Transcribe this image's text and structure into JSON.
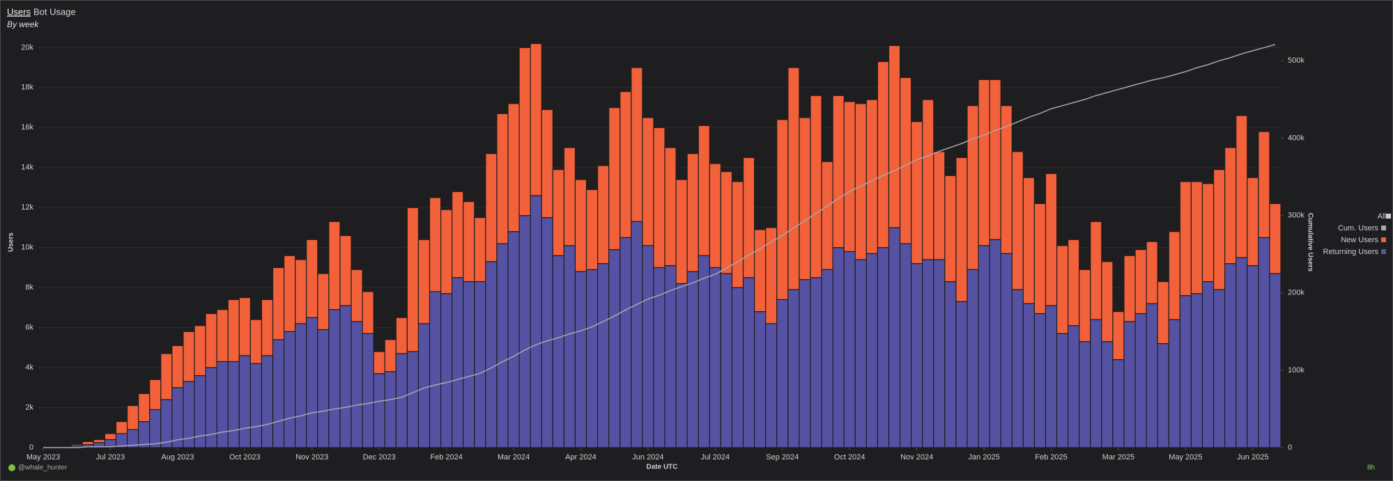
{
  "tabs": [
    "Users",
    "Bot Usage"
  ],
  "chart_data": {
    "type": "bar",
    "stacked": true,
    "subtitle": "By week",
    "x_label": "Date UTC",
    "y_label": "Users",
    "y2_label": "Cumulative Users",
    "legend_title": "All",
    "legend": "right",
    "grid": true,
    "categories": [
      null,
      null,
      null,
      null,
      null,
      null,
      null,
      null,
      null,
      null,
      null,
      null,
      null,
      null,
      null,
      null,
      null,
      null,
      null,
      null,
      null,
      null,
      null,
      null,
      null,
      null,
      null,
      null,
      null,
      null,
      null,
      null,
      null,
      null,
      null,
      null,
      null,
      null,
      null,
      null,
      null,
      null,
      null,
      null,
      null,
      null,
      null,
      null,
      null,
      null,
      null,
      null,
      null,
      null,
      null,
      null,
      null,
      null,
      null,
      null,
      null,
      null,
      null,
      null,
      null,
      null,
      null,
      null,
      null,
      null,
      null,
      null,
      null,
      null,
      null,
      null,
      null,
      null,
      null,
      null,
      null,
      null,
      null,
      null,
      null,
      null,
      null,
      null,
      null,
      null,
      null,
      null,
      null,
      null,
      null,
      null,
      null,
      null,
      null,
      null,
      null,
      null,
      null,
      null,
      null,
      null,
      null,
      null,
      null,
      null,
      null
    ],
    "xticks": [
      {
        "value": 0,
        "label": "May 2023"
      },
      {
        "value": 6,
        "label": "Jul 2023"
      },
      {
        "value": 12,
        "label": "Aug 2023"
      },
      {
        "value": 18,
        "label": "Oct 2023"
      },
      {
        "value": 24,
        "label": "Nov 2023"
      },
      {
        "value": 30,
        "label": "Dec 2023"
      },
      {
        "value": 36,
        "label": "Feb 2024"
      },
      {
        "value": 42,
        "label": "Mar 2024"
      },
      {
        "value": 48,
        "label": "Apr 2024"
      },
      {
        "value": 54,
        "label": "Jun 2024"
      },
      {
        "value": 60,
        "label": "Jul 2024"
      },
      {
        "value": 66,
        "label": "Sep 2024"
      },
      {
        "value": 72,
        "label": "Oct 2024"
      },
      {
        "value": 78,
        "label": "Nov 2024"
      },
      {
        "value": 84,
        "label": "Jan 2025"
      },
      {
        "value": 90,
        "label": "Feb 2025"
      },
      {
        "value": 96,
        "label": "Mar 2025"
      },
      {
        "value": 102,
        "label": "May 2025"
      },
      {
        "value": 108,
        "label": "Jun 2025"
      }
    ],
    "ylim": [
      0,
      20500
    ],
    "yticks": [
      0,
      {
        "value": 2000,
        "label": "2k"
      },
      {
        "value": 4000,
        "label": "4k"
      },
      {
        "value": 6000,
        "label": "6k"
      },
      {
        "value": 8000,
        "label": "8k"
      },
      {
        "value": 10000,
        "label": "10k"
      },
      {
        "value": 12000,
        "label": "12k"
      },
      {
        "value": 14000,
        "label": "14k"
      },
      {
        "value": 16000,
        "label": "16k"
      },
      {
        "value": 18000,
        "label": "18k"
      },
      {
        "value": 20000,
        "label": "20k"
      }
    ],
    "y2lim": [
      0,
      530000
    ],
    "y2ticks": [
      0,
      {
        "value": 100000,
        "label": "100k"
      },
      {
        "value": 200000,
        "label": "200k"
      },
      {
        "value": 300000,
        "label": "300k"
      },
      {
        "value": 400000,
        "label": "400k"
      },
      {
        "value": 500000,
        "label": "500k"
      }
    ],
    "series": [
      {
        "name": "Returning Users",
        "color": "#5552a3",
        "values": [
          10,
          20,
          40,
          80,
          150,
          250,
          400,
          700,
          900,
          1300,
          1900,
          2400,
          3000,
          3300,
          3600,
          4000,
          4300,
          4300,
          4600,
          4200,
          4600,
          5400,
          5800,
          6200,
          6500,
          5900,
          6900,
          7100,
          6300,
          5700,
          3700,
          3800,
          4700,
          4800,
          6200,
          7800,
          7700,
          8500,
          8300,
          8300,
          9300,
          10200,
          10800,
          11600,
          12600,
          11500,
          9600,
          10100,
          8800,
          8900,
          9200,
          9900,
          10500,
          11300,
          10100,
          9000,
          9100,
          8200,
          8800,
          9600,
          9000,
          8700,
          8000,
          8500,
          6800,
          6200,
          7400,
          7900,
          8400,
          8500,
          8900,
          10000,
          9800,
          9400,
          9700,
          10000,
          11000,
          10200,
          9200,
          9400,
          9400,
          8300,
          7300,
          8900,
          10100,
          10400,
          9700,
          7900,
          7200,
          6700,
          7100,
          5700,
          6100,
          5300,
          6400,
          5300,
          4400,
          6300,
          6700,
          7200,
          5200,
          6400,
          7600,
          7700,
          8300,
          7900,
          9200,
          9500,
          9100,
          10500,
          8700
        ]
      },
      {
        "name": "New Users",
        "color": "#f2613a",
        "values": [
          10,
          20,
          40,
          70,
          150,
          150,
          300,
          600,
          1200,
          1400,
          1500,
          2300,
          2100,
          2500,
          2500,
          2700,
          2600,
          3100,
          2900,
          2200,
          2800,
          3600,
          3800,
          3200,
          3900,
          2800,
          4400,
          3500,
          2600,
          2100,
          1100,
          1600,
          1800,
          7200,
          4200,
          4700,
          4200,
          4300,
          4000,
          3200,
          5400,
          6500,
          6400,
          8400,
          7600,
          5400,
          4300,
          4900,
          4600,
          4000,
          4900,
          7100,
          7300,
          7700,
          6400,
          7000,
          5900,
          5200,
          5900,
          6500,
          5200,
          5100,
          5300,
          6000,
          4100,
          4800,
          9000,
          11100,
          8100,
          9100,
          5400,
          7600,
          7500,
          7800,
          7700,
          9300,
          9100,
          8300,
          7100,
          8000,
          5400,
          5300,
          7200,
          8200,
          8300,
          8000,
          7400,
          6900,
          6300,
          5500,
          6600,
          4400,
          4300,
          3600,
          4900,
          4000,
          2400,
          3300,
          3200,
          3100,
          3100,
          4400,
          5700,
          5600,
          4900,
          6000,
          5800,
          7100,
          4400,
          5300,
          3500
        ]
      },
      {
        "name": "Cum. Users",
        "color": "#a9a9ad",
        "axis": "y2",
        "type": "line",
        "values": [
          0,
          0,
          0,
          0,
          1000,
          1000,
          1000,
          2000,
          3000,
          4000,
          5000,
          7000,
          10000,
          12000,
          15000,
          17000,
          20000,
          22000,
          25000,
          27000,
          30000,
          34000,
          38000,
          41000,
          45000,
          47000,
          50000,
          52000,
          55000,
          57000,
          60000,
          62000,
          65000,
          71000,
          77000,
          81000,
          84000,
          88000,
          92000,
          96000,
          103000,
          111000,
          118000,
          126000,
          133000,
          138000,
          142000,
          147000,
          151000,
          156000,
          163000,
          170000,
          178000,
          185000,
          192000,
          197000,
          203000,
          208000,
          213000,
          219000,
          224000,
          232000,
          240000,
          249000,
          257000,
          266000,
          274000,
          284000,
          293000,
          303000,
          312000,
          322000,
          331000,
          338000,
          345000,
          352000,
          358000,
          365000,
          372000,
          377000,
          383000,
          388000,
          393000,
          399000,
          404000,
          410000,
          415000,
          421000,
          427000,
          432000,
          438000,
          442000,
          446000,
          450000,
          455000,
          459000,
          463000,
          467000,
          471000,
          475000,
          478000,
          482000,
          486000,
          491000,
          495000,
          500000,
          504000,
          509000,
          513000,
          517000,
          521000
        ]
      }
    ]
  },
  "footer": {
    "user": "@whale_hunter",
    "age": "8h"
  }
}
